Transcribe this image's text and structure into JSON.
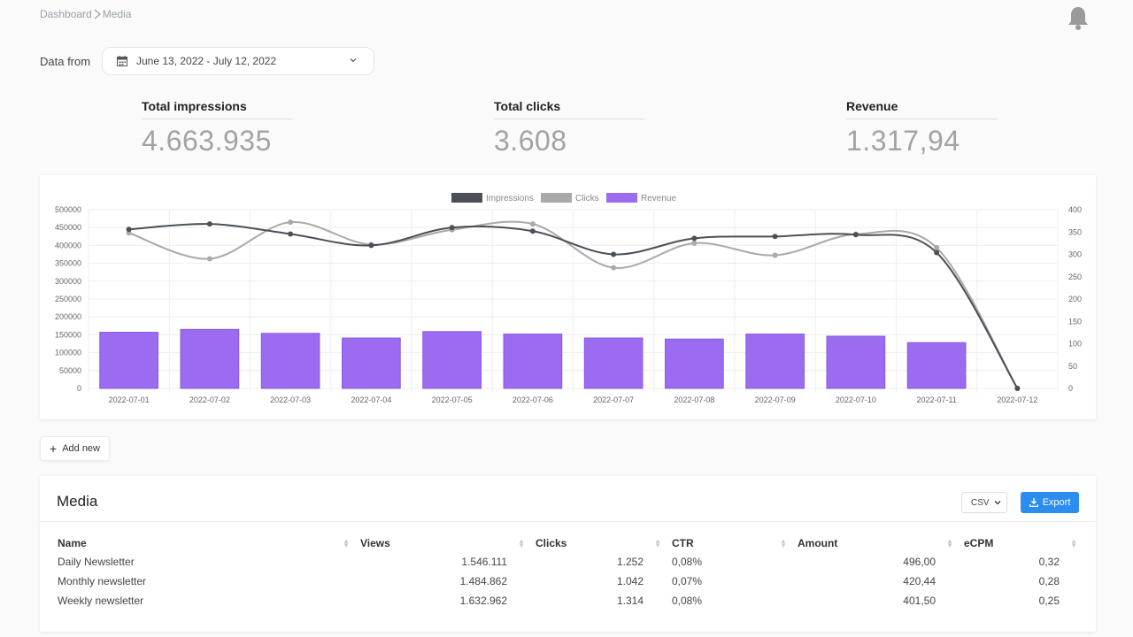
{
  "breadcrumb": {
    "root": "Dashboard",
    "current": "Media"
  },
  "filter": {
    "label": "Data from",
    "range": "June 13, 2022 - July 12, 2022"
  },
  "kpis": [
    {
      "label": "Total impressions",
      "value": "4.663.935"
    },
    {
      "label": "Total clicks",
      "value": "3.608"
    },
    {
      "label": "Revenue",
      "value": "1.317,94"
    }
  ],
  "colors": {
    "impressions": "#4b4f58",
    "clicks": "#a9a9a9",
    "revenue": "#9b6cf0",
    "accent": "#2d8cf0"
  },
  "chart_data": {
    "type": "bar",
    "categories": [
      "2022-07-01",
      "2022-07-02",
      "2022-07-03",
      "2022-07-04",
      "2022-07-05",
      "2022-07-06",
      "2022-07-07",
      "2022-07-08",
      "2022-07-09",
      "2022-07-10",
      "2022-07-11",
      "2022-07-12"
    ],
    "series": [
      {
        "name": "Impressions",
        "type": "line",
        "axis": "left",
        "values": [
          445000,
          460000,
          432000,
          400000,
          450000,
          440000,
          375000,
          420000,
          425000,
          430000,
          380000,
          0
        ]
      },
      {
        "name": "Clicks",
        "type": "line",
        "axis": "right",
        "values": [
          348,
          290,
          372,
          322,
          355,
          368,
          270,
          325,
          298,
          345,
          315,
          0
        ]
      },
      {
        "name": "Revenue",
        "type": "bar",
        "axis": "left",
        "values": [
          157000,
          165000,
          154000,
          141000,
          159000,
          152000,
          141000,
          138000,
          152000,
          146000,
          128000,
          0
        ]
      }
    ],
    "ylim": [
      0,
      500000
    ],
    "y_ticks": [
      "0",
      "50000",
      "100000",
      "150000",
      "200000",
      "250000",
      "300000",
      "350000",
      "400000",
      "450000",
      "500000"
    ],
    "y2lim": [
      0,
      400
    ],
    "y2_ticks": [
      "0",
      "50",
      "100",
      "150",
      "200",
      "250",
      "300",
      "350",
      "400"
    ],
    "legend": "top-center",
    "grid": true
  },
  "add_new_label": "Add new",
  "media": {
    "title": "Media",
    "format": "CSV",
    "export_label": "Export",
    "columns": [
      "Name",
      "Views",
      "Clicks",
      "CTR",
      "Amount",
      "eCPM"
    ],
    "rows": [
      [
        "Daily Newsletter",
        "1.546.111",
        "1.252",
        "0,08%",
        "496,00",
        "0,32"
      ],
      [
        "Monthly newsletter",
        "1.484.862",
        "1.042",
        "0,07%",
        "420,44",
        "0,28"
      ],
      [
        "Weekly newsletter",
        "1.632.962",
        "1.314",
        "0,08%",
        "401,50",
        "0,25"
      ]
    ]
  }
}
